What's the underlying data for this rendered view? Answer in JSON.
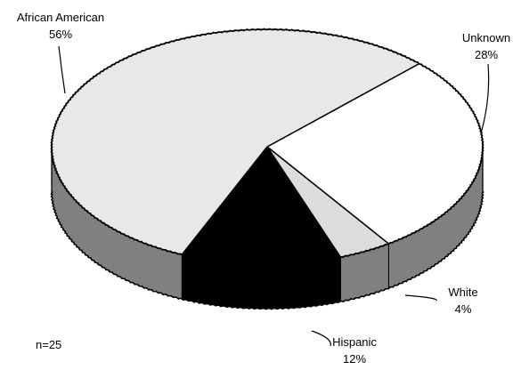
{
  "chart_data": {
    "type": "pie",
    "style": "3d",
    "title": "",
    "categories": [
      "African American",
      "Unknown",
      "White",
      "Hispanic"
    ],
    "values": [
      56,
      28,
      4,
      12
    ],
    "labels": [
      {
        "name": "African American",
        "value": "56%"
      },
      {
        "name": "Unknown",
        "value": "28%"
      },
      {
        "name": "White",
        "value": "4%"
      },
      {
        "name": "Hispanic",
        "value": "12%"
      }
    ],
    "colors": {
      "African American": "#e8e8e8",
      "Unknown": "#ffffff",
      "White": "#dcdcdc",
      "Hispanic": "#000000",
      "side": "#808080"
    },
    "note": "n=25"
  }
}
